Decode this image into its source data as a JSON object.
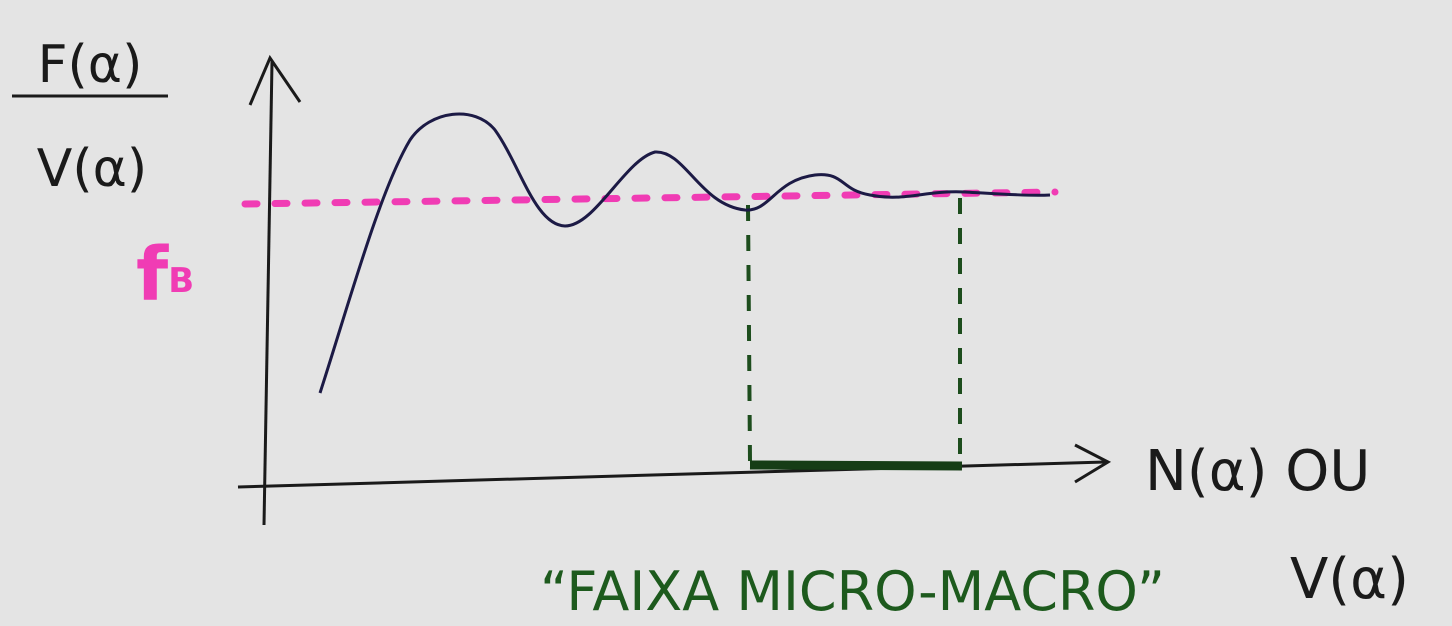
{
  "y_label": {
    "numerator": "F(α)",
    "denominator": "V(α)"
  },
  "reference_line": {
    "label": "f",
    "subscript": "B"
  },
  "x_label": {
    "line1": "N(α) OU",
    "line2": "V(α)"
  },
  "range_label": "“FAIXA MICRO-MACRO”"
}
